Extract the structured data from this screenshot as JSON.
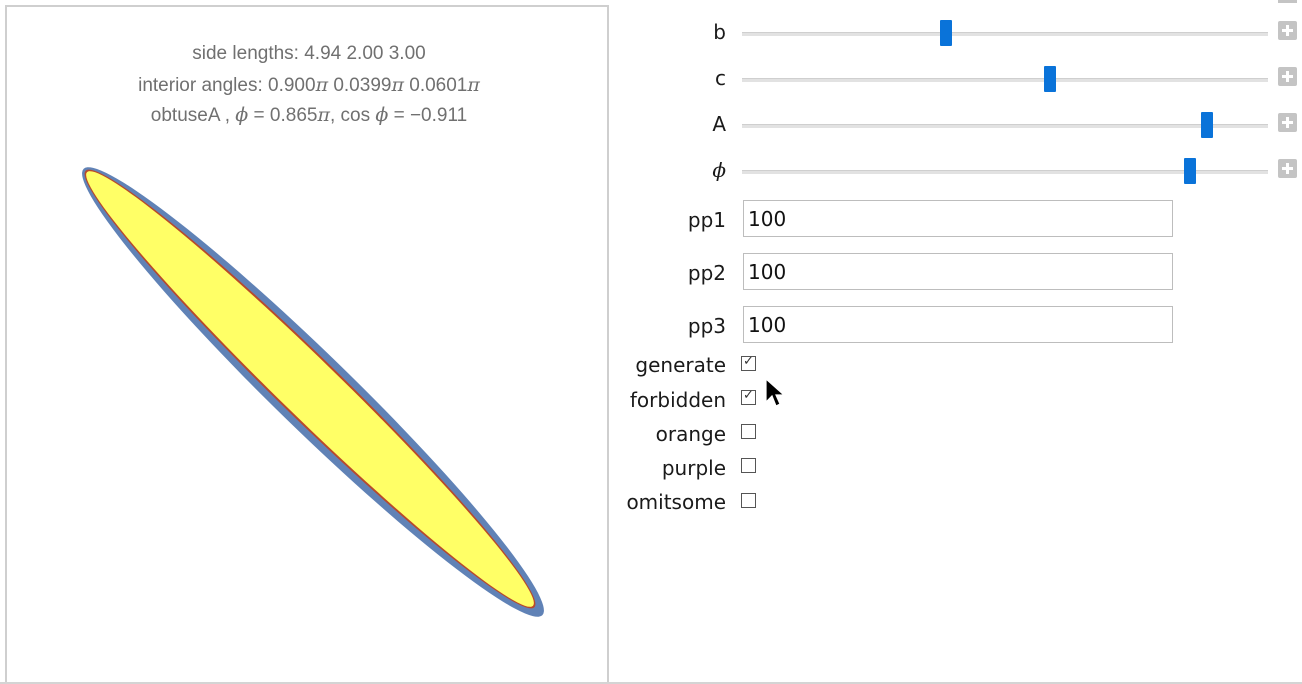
{
  "plot": {
    "line1": "side lengths: 4.94  2.00  3.00",
    "line2_prefix": "interior angles: 0.900",
    "line2_pi1": "π",
    "line2_mid1": "  0.0399",
    "line2_pi2": "π",
    "line2_mid2": "  0.0601",
    "line2_pi3": "π",
    "line3_prefix": "obtuseA ,   ",
    "line3_phi": "ϕ",
    "line3_mid": " = 0.865",
    "line3_pi": "π",
    "line3_cos": ",  cos ",
    "line3_phi2": "ϕ",
    "line3_end": " = −0.911",
    "colors": {
      "fill": "#ffff66",
      "outer": "#6082b6",
      "inner_edge": "#c0392b"
    }
  },
  "sliders": [
    {
      "label": "b",
      "value_fraction": 0.39
    },
    {
      "label": "c",
      "value_fraction": 0.59
    },
    {
      "label": "A",
      "value_fraction": 0.9
    },
    {
      "label": "ϕ",
      "value_fraction": 0.87
    }
  ],
  "inputs": [
    {
      "label": "pp1",
      "value": "100"
    },
    {
      "label": "pp2",
      "value": "100"
    },
    {
      "label": "pp3",
      "value": "100"
    }
  ],
  "checkboxes": [
    {
      "label": "generate",
      "checked": true
    },
    {
      "label": "forbidden",
      "checked": true
    },
    {
      "label": "orange",
      "checked": false
    },
    {
      "label": "purple",
      "checked": false
    },
    {
      "label": "omitsome",
      "checked": false
    }
  ],
  "accent_color": "#0a73d9"
}
